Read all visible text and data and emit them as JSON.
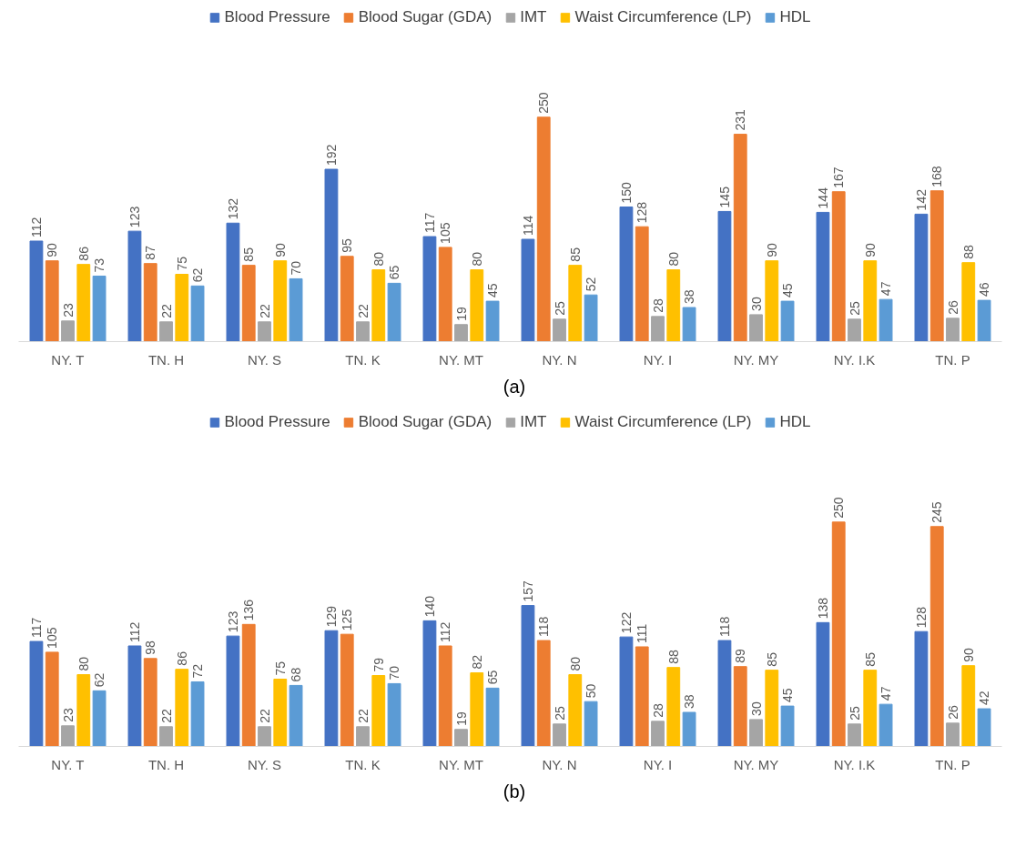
{
  "chart_data": [
    {
      "type": "bar",
      "categories": [
        "NY. T",
        "TN. H",
        "NY. S",
        "TN. K",
        "NY. MT",
        "NY. N",
        "NY. I",
        "NY. MY",
        "NY. I.K",
        "TN. P"
      ],
      "series": [
        {
          "name": "Blood Pressure",
          "color": "#4472c4",
          "values": [
            112,
            123,
            132,
            192,
            117,
            114,
            150,
            145,
            144,
            142
          ]
        },
        {
          "name": "Blood Sugar (GDA)",
          "color": "#ed7d31",
          "values": [
            90,
            87,
            85,
            95,
            105,
            250,
            128,
            231,
            167,
            168
          ]
        },
        {
          "name": "IMT",
          "color": "#a5a5a5",
          "values": [
            23,
            22,
            22,
            22,
            19,
            25,
            28,
            30,
            25,
            26
          ]
        },
        {
          "name": "Waist Circumference (LP)",
          "color": "#ffc000",
          "values": [
            86,
            75,
            90,
            80,
            80,
            85,
            80,
            90,
            90,
            88
          ]
        },
        {
          "name": "HDL",
          "color": "#5b9bd5",
          "values": [
            73,
            62,
            70,
            65,
            45,
            52,
            38,
            45,
            47,
            46
          ]
        }
      ],
      "data_labels": true,
      "legend": "top",
      "grid": false,
      "annotations": [
        "(a)"
      ]
    },
    {
      "type": "bar",
      "categories": [
        "NY. T",
        "TN. H",
        "NY. S",
        "TN. K",
        "NY. MT",
        "NY. N",
        "NY. I",
        "NY. MY",
        "NY. I.K",
        "TN. P"
      ],
      "series": [
        {
          "name": "Blood Pressure",
          "color": "#4472c4",
          "values": [
            117,
            112,
            123,
            129,
            140,
            157,
            122,
            118,
            138,
            128
          ]
        },
        {
          "name": "Blood Sugar (GDA)",
          "color": "#ed7d31",
          "values": [
            105,
            98,
            136,
            125,
            112,
            118,
            111,
            89,
            250,
            245
          ]
        },
        {
          "name": "IMT",
          "color": "#a5a5a5",
          "values": [
            23,
            22,
            22,
            22,
            19,
            25,
            28,
            30,
            25,
            26
          ]
        },
        {
          "name": "Waist Circumference (LP)",
          "color": "#ffc000",
          "values": [
            80,
            86,
            75,
            79,
            82,
            80,
            88,
            85,
            85,
            90
          ]
        },
        {
          "name": "HDL",
          "color": "#5b9bd5",
          "values": [
            62,
            72,
            68,
            70,
            65,
            50,
            38,
            45,
            47,
            42
          ]
        }
      ],
      "data_labels": true,
      "legend": "top",
      "grid": false,
      "annotations": [
        "(b)"
      ]
    }
  ]
}
